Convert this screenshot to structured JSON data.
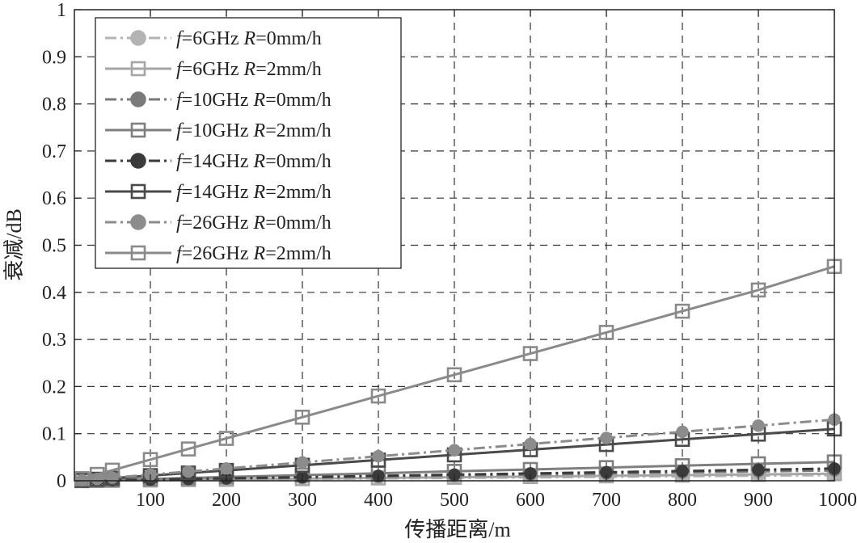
{
  "chart_data": {
    "type": "line",
    "title": "",
    "xlabel": "传播距离/m",
    "ylabel": "衰减/dB",
    "xlim": [
      0,
      1000
    ],
    "ylim": [
      0,
      1
    ],
    "grid": true,
    "legend_position": "top-left",
    "xticks": [
      100,
      200,
      300,
      400,
      500,
      600,
      700,
      800,
      900,
      1000
    ],
    "yticks": [
      0,
      0.1,
      0.2,
      0.3,
      0.4,
      0.5,
      0.6,
      0.7,
      0.8,
      0.9,
      1
    ],
    "ytick_labels": [
      "0",
      "0.1",
      "0.2",
      "0.3",
      "0.4",
      "0.5",
      "0.6",
      "0.7",
      "0.8",
      "0.9",
      "1"
    ],
    "x": [
      10,
      30,
      50,
      100,
      150,
      200,
      300,
      400,
      500,
      600,
      700,
      800,
      900,
      1000
    ],
    "series": [
      {
        "name_f": "f",
        "name_rest": "=6GHz ",
        "name_r": "R",
        "name_tail": "=0mm/h",
        "color": "#b3b3b3",
        "dash": "dashdot",
        "marker": "circle",
        "values": [
          0.0001,
          0.0004,
          0.0006,
          0.0012,
          0.0018,
          0.0024,
          0.0036,
          0.0048,
          0.006,
          0.0072,
          0.0084,
          0.0096,
          0.0108,
          0.012
        ]
      },
      {
        "name_f": "f",
        "name_rest": "=6GHz ",
        "name_r": "R",
        "name_tail": "=2mm/h",
        "color": "#a6a6a6",
        "dash": "solid",
        "marker": "square",
        "values": [
          0.0002,
          0.0005,
          0.0008,
          0.0015,
          0.0023,
          0.003,
          0.0045,
          0.006,
          0.0075,
          0.009,
          0.0105,
          0.012,
          0.0135,
          0.015
        ]
      },
      {
        "name_f": "f",
        "name_rest": "=10GHz ",
        "name_r": "R",
        "name_tail": "=0mm/h",
        "color": "#7a7a7a",
        "dash": "dashdot",
        "marker": "circle",
        "values": [
          0.0002,
          0.0007,
          0.0011,
          0.0022,
          0.0033,
          0.0044,
          0.0066,
          0.0088,
          0.011,
          0.0132,
          0.0154,
          0.0176,
          0.0198,
          0.022
        ]
      },
      {
        "name_f": "f",
        "name_rest": "=10GHz ",
        "name_r": "R",
        "name_tail": "=2mm/h",
        "color": "#7f7f7f",
        "dash": "solid",
        "marker": "square",
        "values": [
          0.0004,
          0.0012,
          0.002,
          0.004,
          0.006,
          0.008,
          0.012,
          0.016,
          0.02,
          0.024,
          0.028,
          0.032,
          0.036,
          0.04
        ]
      },
      {
        "name_f": "f",
        "name_rest": "=14GHz ",
        "name_r": "R",
        "name_tail": "=0mm/h",
        "color": "#3a3a3a",
        "dash": "dashdot",
        "marker": "circle",
        "values": [
          0.0003,
          0.0008,
          0.0013,
          0.0026,
          0.0039,
          0.0052,
          0.0078,
          0.0104,
          0.013,
          0.0156,
          0.0182,
          0.0208,
          0.0234,
          0.026
        ]
      },
      {
        "name_f": "f",
        "name_rest": "=14GHz ",
        "name_r": "R",
        "name_tail": "=2mm/h",
        "color": "#4a4a4a",
        "dash": "solid",
        "marker": "square",
        "values": [
          0.0011,
          0.0033,
          0.0055,
          0.011,
          0.0165,
          0.022,
          0.033,
          0.044,
          0.055,
          0.066,
          0.077,
          0.088,
          0.099,
          0.11
        ]
      },
      {
        "name_f": "f",
        "name_rest": "=26GHz ",
        "name_r": "R",
        "name_tail": "=0mm/h",
        "color": "#8c8c8c",
        "dash": "dashdot",
        "marker": "circle",
        "values": [
          0.0013,
          0.0039,
          0.0065,
          0.013,
          0.0195,
          0.026,
          0.039,
          0.052,
          0.065,
          0.078,
          0.091,
          0.104,
          0.117,
          0.13
        ]
      },
      {
        "name_f": "f",
        "name_rest": "=26GHz ",
        "name_r": "R",
        "name_tail": "=2mm/h",
        "color": "#8a8a8a",
        "dash": "solid",
        "marker": "square",
        "values": [
          0.0045,
          0.0135,
          0.0225,
          0.045,
          0.0675,
          0.09,
          0.135,
          0.18,
          0.225,
          0.27,
          0.315,
          0.36,
          0.405,
          0.455
        ]
      }
    ]
  }
}
